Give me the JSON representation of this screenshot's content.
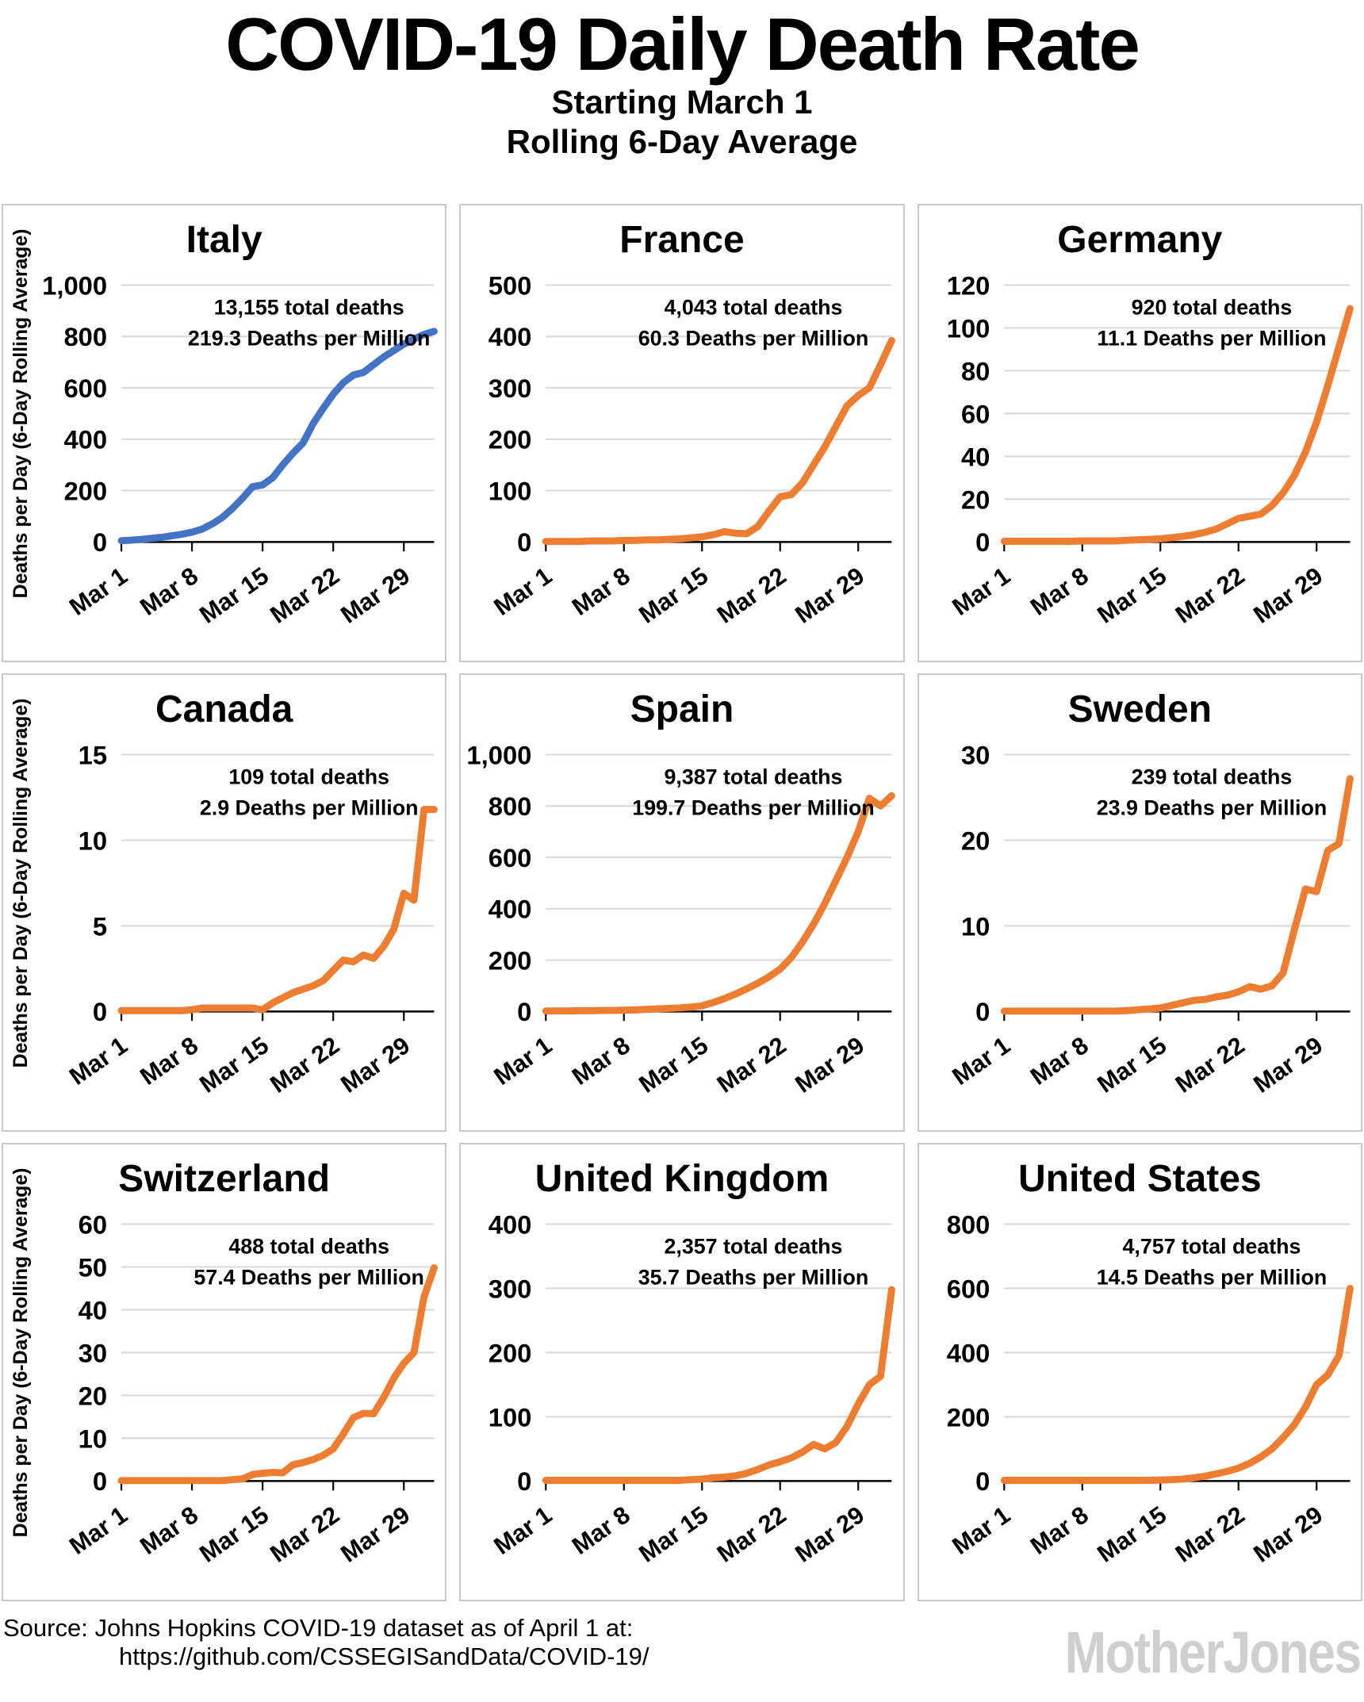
{
  "header": {
    "title": "COVID-19 Daily Death Rate",
    "subtitle1": "Starting March 1",
    "subtitle2": "Rolling 6-Day Average"
  },
  "footer": {
    "source_line1": "Source: Johns Hopkins COVID-19 dataset as of April 1 at:",
    "source_line2": "https://github.com/CSSEGISandData/COVID-19/",
    "logo_text": "MotherJones"
  },
  "colors": {
    "orange": "#ED7D31",
    "blue": "#4472C4",
    "annotation_red": "#FF0000",
    "gridline": "#D9D9D9",
    "panel_border": "#C8C8C8",
    "axis_black": "#000000",
    "logo_gray": "#CFCFCF"
  },
  "axis": {
    "y_axis_label": "Deaths per Day (6-Day Rolling Average)",
    "x_tick_labels": [
      "Mar 1",
      "Mar 8",
      "Mar 15",
      "Mar 22",
      "Mar 29"
    ],
    "x_tick_days": [
      0,
      7,
      14,
      21,
      28
    ],
    "x_total_days": 31,
    "x_range": [
      "Mar 1",
      "Apr 1"
    ],
    "grid": "horizontal-only",
    "legend": "none"
  },
  "chart_data": [
    {
      "type": "line",
      "country": "Italy",
      "line_color": "#4472C4",
      "show_y_axis_label": true,
      "ylim": [
        0,
        1000
      ],
      "y_ticks": [
        0,
        200,
        400,
        600,
        800,
        1000
      ],
      "annotation": {
        "line1": "13,155 total deaths",
        "line2": "219.3 Deaths per Million"
      },
      "values": [
        5,
        7,
        10,
        14,
        18,
        24,
        30,
        38,
        50,
        70,
        95,
        130,
        170,
        215,
        222,
        250,
        300,
        345,
        385,
        460,
        520,
        575,
        620,
        650,
        660,
        690,
        720,
        745,
        770,
        790,
        808,
        820
      ]
    },
    {
      "type": "line",
      "country": "France",
      "line_color": "#ED7D31",
      "show_y_axis_label": false,
      "ylim": [
        0,
        500
      ],
      "y_ticks": [
        0,
        100,
        200,
        300,
        400,
        500
      ],
      "annotation": {
        "line1": "4,043 total deaths",
        "line2": "60.3 Deaths per Million"
      },
      "values": [
        1,
        1,
        1,
        1,
        2,
        2,
        2,
        3,
        3,
        4,
        4,
        5,
        6,
        8,
        10,
        14,
        20,
        17,
        16,
        30,
        60,
        88,
        92,
        115,
        150,
        185,
        225,
        265,
        285,
        300,
        345,
        392
      ]
    },
    {
      "type": "line",
      "country": "Germany",
      "line_color": "#ED7D31",
      "show_y_axis_label": false,
      "ylim": [
        0,
        120
      ],
      "y_ticks": [
        0,
        20,
        40,
        60,
        80,
        100,
        120
      ],
      "annotation": {
        "line1": "920 total deaths",
        "line2": "11.1 Deaths per Million"
      },
      "values": [
        0.3,
        0.3,
        0.3,
        0.3,
        0.3,
        0.3,
        0.3,
        0.5,
        0.5,
        0.5,
        0.5,
        0.8,
        1,
        1.2,
        1.5,
        2,
        2.6,
        3.4,
        4.5,
        6,
        8.5,
        11,
        12,
        13,
        17,
        23,
        31,
        42,
        56,
        73,
        91,
        109
      ]
    },
    {
      "type": "line",
      "country": "Canada",
      "line_color": "#ED7D31",
      "show_y_axis_label": true,
      "ylim": [
        0,
        15
      ],
      "y_ticks": [
        0,
        5,
        10,
        15
      ],
      "annotation": {
        "line1": "109 total deaths",
        "line2": "2.9 Deaths per Million"
      },
      "values": [
        0.05,
        0.05,
        0.05,
        0.05,
        0.05,
        0.05,
        0.05,
        0.1,
        0.2,
        0.2,
        0.2,
        0.2,
        0.2,
        0.2,
        0.1,
        0.5,
        0.8,
        1.1,
        1.3,
        1.5,
        1.8,
        2.4,
        3.0,
        2.9,
        3.3,
        3.1,
        3.8,
        4.8,
        6.9,
        6.5,
        11.8,
        11.8
      ]
    },
    {
      "type": "line",
      "country": "Spain",
      "line_color": "#ED7D31",
      "show_y_axis_label": false,
      "ylim": [
        0,
        1000
      ],
      "y_ticks": [
        0,
        200,
        400,
        600,
        800,
        1000
      ],
      "annotation": {
        "line1": "9,387 total deaths",
        "line2": "199.7 Deaths per Million"
      },
      "values": [
        2,
        2,
        2,
        3,
        3,
        4,
        4,
        5,
        6,
        8,
        10,
        12,
        14,
        17,
        22,
        35,
        50,
        68,
        88,
        110,
        135,
        165,
        210,
        270,
        340,
        420,
        510,
        600,
        700,
        830,
        800,
        840
      ]
    },
    {
      "type": "line",
      "country": "Sweden",
      "line_color": "#ED7D31",
      "show_y_axis_label": false,
      "ylim": [
        0,
        30
      ],
      "y_ticks": [
        0,
        10,
        20,
        30
      ],
      "annotation": {
        "line1": "239 total deaths",
        "line2": "23.9 Deaths per Million"
      },
      "values": [
        0.05,
        0.05,
        0.05,
        0.05,
        0.05,
        0.05,
        0.05,
        0.05,
        0.05,
        0.05,
        0.05,
        0.1,
        0.2,
        0.3,
        0.4,
        0.7,
        1.0,
        1.3,
        1.4,
        1.7,
        1.9,
        2.3,
        2.9,
        2.6,
        3.0,
        4.5,
        9.5,
        14.3,
        14.0,
        18.8,
        19.6,
        27.2
      ]
    },
    {
      "type": "line",
      "country": "Switzerland",
      "line_color": "#ED7D31",
      "show_y_axis_label": true,
      "ylim": [
        0,
        60
      ],
      "y_ticks": [
        0,
        10,
        20,
        30,
        40,
        50,
        60
      ],
      "annotation": {
        "line1": "488 total deaths",
        "line2": "57.4 Deaths per Million"
      },
      "values": [
        0.1,
        0.1,
        0.1,
        0.1,
        0.1,
        0.1,
        0.1,
        0.1,
        0.1,
        0.1,
        0.1,
        0.3,
        0.5,
        1.5,
        1.8,
        2.0,
        1.9,
        3.8,
        4.3,
        5.0,
        6.0,
        7.5,
        11.0,
        14.8,
        15.8,
        15.7,
        19.5,
        24.0,
        27.5,
        30.0,
        43.0,
        49.8
      ]
    },
    {
      "type": "line",
      "country": "United Kingdom",
      "line_color": "#ED7D31",
      "show_y_axis_label": false,
      "ylim": [
        0,
        400
      ],
      "y_ticks": [
        0,
        100,
        200,
        300,
        400
      ],
      "annotation": {
        "line1": "2,357 total deaths",
        "line2": "35.7 Deaths per Million"
      },
      "values": [
        1,
        1,
        1,
        1,
        1,
        1,
        1,
        1,
        1,
        1,
        1,
        1,
        1,
        2,
        3,
        5,
        6,
        8,
        12,
        18,
        25,
        30,
        36,
        45,
        57,
        50,
        60,
        85,
        120,
        150,
        163,
        298
      ]
    },
    {
      "type": "line",
      "country": "United States",
      "line_color": "#ED7D31",
      "show_y_axis_label": false,
      "ylim": [
        0,
        800
      ],
      "y_ticks": [
        0,
        200,
        400,
        600,
        800
      ],
      "annotation": {
        "line1": "4,757 total deaths",
        "line2": "14.5 Deaths per Million"
      },
      "values": [
        2,
        2,
        2,
        2,
        2,
        2,
        2,
        2,
        2,
        2,
        2,
        2,
        2,
        2,
        3,
        4,
        6,
        10,
        15,
        22,
        30,
        40,
        55,
        75,
        100,
        135,
        175,
        230,
        300,
        330,
        390,
        600
      ]
    }
  ]
}
